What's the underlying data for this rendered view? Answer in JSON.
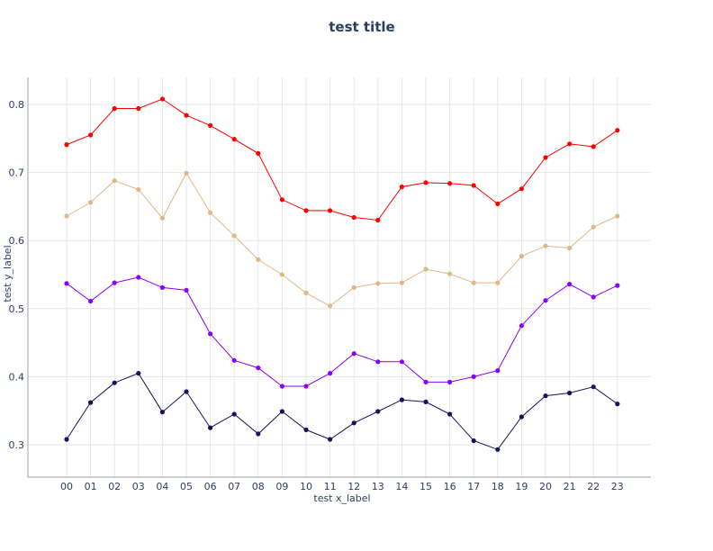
{
  "chart_data": {
    "type": "line",
    "title": "test title",
    "xlabel": "test x_label",
    "ylabel": "test y_label",
    "categories": [
      "00",
      "01",
      "02",
      "03",
      "04",
      "05",
      "06",
      "07",
      "08",
      "09",
      "10",
      "11",
      "12",
      "13",
      "14",
      "15",
      "16",
      "17",
      "18",
      "19",
      "20",
      "21",
      "22",
      "23"
    ],
    "ylim": [
      0.25,
      0.84
    ],
    "yticks": [
      0.3,
      0.4,
      0.5,
      0.6,
      0.7,
      0.8
    ],
    "ytick_labels": [
      "0.3",
      "0.4",
      "0.5",
      "0.6",
      "0.7",
      "0.8"
    ],
    "grid": true,
    "legend": "none",
    "series": [
      {
        "color": "#ff0000",
        "values": [
          0.741,
          0.755,
          0.794,
          0.794,
          0.808,
          0.784,
          0.769,
          0.749,
          0.728,
          0.66,
          0.644,
          0.644,
          0.634,
          0.63,
          0.679,
          0.685,
          0.684,
          0.681,
          0.654,
          0.676,
          0.722,
          0.742,
          0.738,
          0.762
        ]
      },
      {
        "color": "#deb887",
        "values": [
          0.636,
          0.656,
          0.688,
          0.675,
          0.633,
          0.699,
          0.641,
          0.607,
          0.572,
          0.55,
          0.523,
          0.504,
          0.531,
          0.537,
          0.538,
          0.558,
          0.551,
          0.538,
          0.538,
          0.577,
          0.592,
          0.589,
          0.62,
          0.636
        ]
      },
      {
        "color": "#8a00ff",
        "values": [
          0.537,
          0.511,
          0.538,
          0.546,
          0.531,
          0.527,
          0.463,
          0.424,
          0.413,
          0.386,
          0.386,
          0.405,
          0.434,
          0.422,
          0.422,
          0.392,
          0.392,
          0.4,
          0.409,
          0.475,
          0.512,
          0.536,
          0.517,
          0.534
        ]
      },
      {
        "color": "#14145a",
        "values": [
          0.308,
          0.362,
          0.391,
          0.405,
          0.348,
          0.378,
          0.325,
          0.345,
          0.316,
          0.349,
          0.322,
          0.308,
          0.332,
          0.349,
          0.366,
          0.363,
          0.345,
          0.306,
          0.293,
          0.341,
          0.372,
          0.376,
          0.385,
          0.36
        ]
      }
    ]
  }
}
